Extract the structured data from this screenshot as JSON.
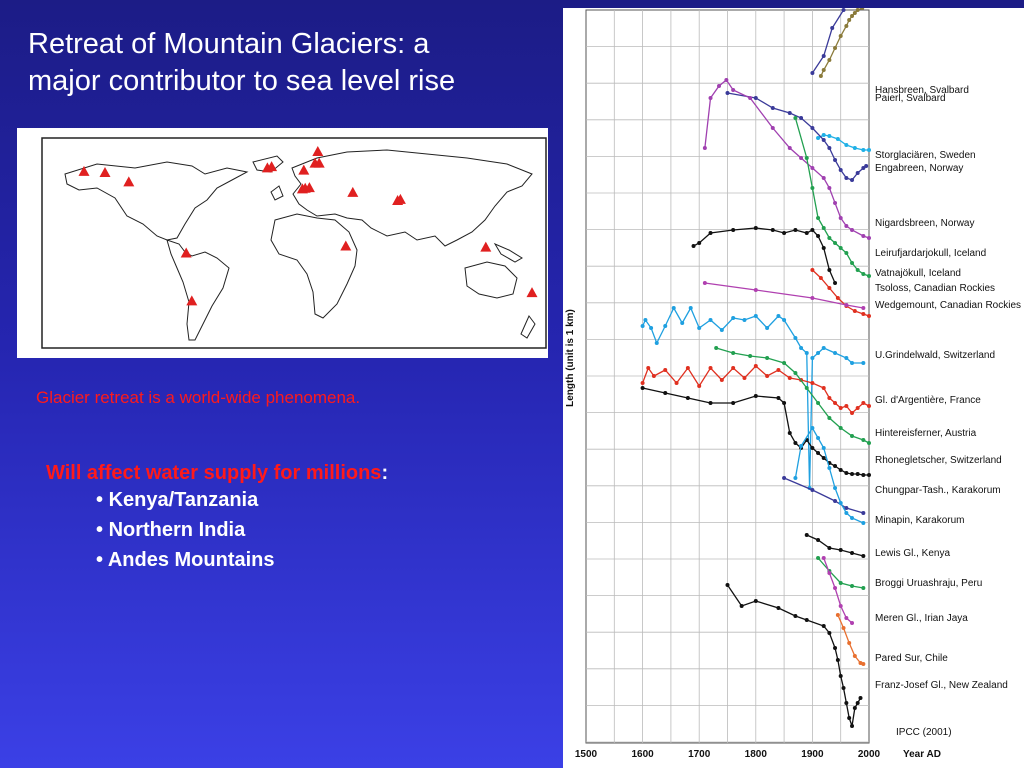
{
  "slide": {
    "title_lines": [
      "Retreat of Mountain Glaciers: a",
      "major contributor to sea level rise"
    ],
    "caption": "Glacier retreat is a world-wide phenomena.",
    "impact_heading_red": "Will affect water supply for millions",
    "impact_heading_colon": ":",
    "impacts": [
      "Kenya/Tanzania",
      "Northern India",
      "Andes Mountains"
    ]
  },
  "colors": {
    "marker": "#e02020",
    "heading_red": "#ff1a1a"
  },
  "map": {
    "markers": [
      {
        "lon": -135,
        "lat": 60
      },
      {
        "lon": -118,
        "lat": 52
      },
      {
        "lon": -150,
        "lat": 61
      },
      {
        "lon": -19,
        "lat": 64
      },
      {
        "lon": -16,
        "lat": 65
      },
      {
        "lon": 7,
        "lat": 62
      },
      {
        "lon": 17,
        "lat": 78
      },
      {
        "lon": 15,
        "lat": 68
      },
      {
        "lon": 18,
        "lat": 68
      },
      {
        "lon": 8,
        "lat": 46.5
      },
      {
        "lon": 11,
        "lat": 47
      },
      {
        "lon": 6,
        "lat": 46
      },
      {
        "lon": 42,
        "lat": 43
      },
      {
        "lon": 76,
        "lat": 37
      },
      {
        "lon": 74,
        "lat": 36
      },
      {
        "lon": 37,
        "lat": -3
      },
      {
        "lon": 137,
        "lat": -4
      },
      {
        "lon": -77,
        "lat": -9
      },
      {
        "lon": -73,
        "lat": -50
      },
      {
        "lon": 170,
        "lat": -43
      }
    ]
  },
  "chart_data": {
    "type": "line",
    "xlabel": "Year AD",
    "ylabel": "Length (unit is 1 km)",
    "xlim": [
      1500,
      2000
    ],
    "xticks": [
      1500,
      1600,
      1700,
      1800,
      1900,
      2000
    ],
    "grid": true,
    "credit": "IPCC (2001)",
    "series": [
      {
        "name": "Hansbreen, Svalbard",
        "color": "#8a7a3a",
        "ybase": 85,
        "points": [
          [
            1915,
            68
          ],
          [
            1920,
            62
          ],
          [
            1930,
            52
          ],
          [
            1940,
            40
          ],
          [
            1950,
            28
          ],
          [
            1960,
            18
          ],
          [
            1965,
            12
          ],
          [
            1970,
            8
          ],
          [
            1975,
            5
          ],
          [
            1980,
            2
          ],
          [
            1988,
            0
          ]
        ]
      },
      {
        "name": "Paierl, Svalbard",
        "color": "#3a3a99",
        "ybase": 93,
        "points": [
          [
            1900,
            65
          ],
          [
            1920,
            48
          ],
          [
            1935,
            20
          ],
          [
            1955,
            2
          ]
        ]
      },
      {
        "name": "Storglaciären, Sweden",
        "color": "#1fb0e6",
        "ybase": 150,
        "points": [
          [
            1910,
            130
          ],
          [
            1920,
            127
          ],
          [
            1930,
            128
          ],
          [
            1945,
            131
          ],
          [
            1960,
            137
          ],
          [
            1975,
            140
          ],
          [
            1990,
            142
          ],
          [
            2000,
            142
          ]
        ]
      },
      {
        "name": "Engabreen, Norway",
        "color": "#3a3a99",
        "ybase": 163,
        "points": [
          [
            1750,
            85
          ],
          [
            1800,
            90
          ],
          [
            1830,
            100
          ],
          [
            1860,
            105
          ],
          [
            1880,
            110
          ],
          [
            1900,
            120
          ],
          [
            1920,
            132
          ],
          [
            1930,
            140
          ],
          [
            1940,
            152
          ],
          [
            1950,
            162
          ],
          [
            1960,
            170
          ],
          [
            1970,
            172
          ],
          [
            1980,
            165
          ],
          [
            1990,
            160
          ],
          [
            1995,
            158
          ]
        ]
      },
      {
        "name": "Nigardsbreen, Norway",
        "color": "#a040b0",
        "ybase": 218,
        "points": [
          [
            1710,
            140
          ],
          [
            1720,
            90
          ],
          [
            1735,
            78
          ],
          [
            1748,
            72
          ],
          [
            1760,
            82
          ],
          [
            1790,
            90
          ],
          [
            1830,
            120
          ],
          [
            1860,
            140
          ],
          [
            1880,
            150
          ],
          [
            1900,
            160
          ],
          [
            1920,
            170
          ],
          [
            1930,
            180
          ],
          [
            1940,
            195
          ],
          [
            1950,
            210
          ],
          [
            1960,
            218
          ],
          [
            1970,
            222
          ],
          [
            1990,
            228
          ],
          [
            2000,
            230
          ]
        ]
      },
      {
        "name": "Leirufjardarjokull, Iceland",
        "color": "#111111",
        "ybase": 248,
        "points": [
          [
            1690,
            238
          ],
          [
            1700,
            235
          ],
          [
            1720,
            225
          ],
          [
            1760,
            222
          ],
          [
            1800,
            220
          ],
          [
            1830,
            222
          ],
          [
            1850,
            225
          ],
          [
            1870,
            222
          ],
          [
            1890,
            225
          ],
          [
            1900,
            222
          ],
          [
            1910,
            228
          ],
          [
            1920,
            240
          ],
          [
            1930,
            262
          ],
          [
            1940,
            275
          ]
        ]
      },
      {
        "name": "Vatnajökull, Iceland",
        "color": "#22a050",
        "ybase": 268,
        "points": [
          [
            1870,
            110
          ],
          [
            1890,
            150
          ],
          [
            1900,
            180
          ],
          [
            1910,
            210
          ],
          [
            1920,
            220
          ],
          [
            1930,
            230
          ],
          [
            1940,
            235
          ],
          [
            1950,
            240
          ],
          [
            1960,
            245
          ],
          [
            1970,
            255
          ],
          [
            1980,
            262
          ],
          [
            1990,
            266
          ],
          [
            2000,
            268
          ]
        ]
      },
      {
        "name": "Tsoloss, Canadian Rockies",
        "color": "#e03020",
        "ybase": 283,
        "points": [
          [
            1900,
            262
          ],
          [
            1915,
            270
          ],
          [
            1930,
            280
          ],
          [
            1945,
            290
          ],
          [
            1960,
            298
          ],
          [
            1975,
            303
          ],
          [
            1990,
            306
          ],
          [
            2000,
            308
          ]
        ]
      },
      {
        "name": "Wedgemount, Canadian Rockies",
        "color": "#b040b0",
        "ybase": 300,
        "points": [
          [
            1710,
            275
          ],
          [
            1800,
            282
          ],
          [
            1900,
            290
          ],
          [
            1960,
            297
          ],
          [
            1990,
            300
          ]
        ]
      },
      {
        "name": "U.Grindelwald, Switzerland",
        "color": "#1fa0e0",
        "ybase": 350,
        "points": [
          [
            1600,
            318
          ],
          [
            1605,
            312
          ],
          [
            1615,
            320
          ],
          [
            1625,
            335
          ],
          [
            1640,
            318
          ],
          [
            1655,
            300
          ],
          [
            1670,
            315
          ],
          [
            1685,
            300
          ],
          [
            1700,
            320
          ],
          [
            1720,
            312
          ],
          [
            1740,
            322
          ],
          [
            1760,
            310
          ],
          [
            1780,
            312
          ],
          [
            1800,
            308
          ],
          [
            1820,
            320
          ],
          [
            1840,
            308
          ],
          [
            1850,
            312
          ],
          [
            1870,
            330
          ],
          [
            1880,
            340
          ],
          [
            1890,
            345
          ],
          [
            1895,
            480
          ],
          [
            1900,
            350
          ],
          [
            1910,
            345
          ],
          [
            1920,
            340
          ],
          [
            1940,
            345
          ],
          [
            1960,
            350
          ],
          [
            1970,
            355
          ],
          [
            1990,
            355
          ]
        ]
      },
      {
        "name": "Gl. d'Argentière, France",
        "color": "#e03020",
        "ybase": 395,
        "points": [
          [
            1600,
            375
          ],
          [
            1610,
            360
          ],
          [
            1620,
            368
          ],
          [
            1640,
            362
          ],
          [
            1660,
            375
          ],
          [
            1680,
            360
          ],
          [
            1700,
            378
          ],
          [
            1720,
            360
          ],
          [
            1740,
            372
          ],
          [
            1760,
            360
          ],
          [
            1780,
            370
          ],
          [
            1800,
            358
          ],
          [
            1820,
            368
          ],
          [
            1840,
            362
          ],
          [
            1860,
            370
          ],
          [
            1880,
            372
          ],
          [
            1900,
            375
          ],
          [
            1920,
            380
          ],
          [
            1930,
            390
          ],
          [
            1940,
            395
          ],
          [
            1950,
            400
          ],
          [
            1960,
            398
          ],
          [
            1970,
            405
          ],
          [
            1980,
            400
          ],
          [
            1990,
            395
          ],
          [
            2000,
            398
          ]
        ]
      },
      {
        "name": "Hintereisferner, Austria",
        "color": "#22a050",
        "ybase": 428,
        "points": [
          [
            1730,
            340
          ],
          [
            1760,
            345
          ],
          [
            1790,
            348
          ],
          [
            1820,
            350
          ],
          [
            1850,
            355
          ],
          [
            1870,
            365
          ],
          [
            1890,
            380
          ],
          [
            1910,
            395
          ],
          [
            1930,
            410
          ],
          [
            1950,
            420
          ],
          [
            1970,
            428
          ],
          [
            1990,
            432
          ],
          [
            2000,
            435
          ]
        ]
      },
      {
        "name": "Rhonegletscher, Switzerland",
        "color": "#111111",
        "ybase": 455,
        "points": [
          [
            1600,
            380
          ],
          [
            1640,
            385
          ],
          [
            1680,
            390
          ],
          [
            1720,
            395
          ],
          [
            1760,
            395
          ],
          [
            1800,
            388
          ],
          [
            1840,
            390
          ],
          [
            1850,
            395
          ],
          [
            1860,
            425
          ],
          [
            1870,
            435
          ],
          [
            1880,
            440
          ],
          [
            1890,
            432
          ],
          [
            1900,
            440
          ],
          [
            1910,
            445
          ],
          [
            1920,
            450
          ],
          [
            1930,
            455
          ],
          [
            1940,
            458
          ],
          [
            1950,
            462
          ],
          [
            1960,
            465
          ],
          [
            1970,
            466
          ],
          [
            1980,
            466
          ],
          [
            1990,
            467
          ],
          [
            2000,
            467
          ]
        ]
      },
      {
        "name": "Chungpar-Tash., Karakorum",
        "color": "#3a3a99",
        "ybase": 485,
        "points": [
          [
            1850,
            470
          ],
          [
            1900,
            482
          ],
          [
            1940,
            493
          ],
          [
            1960,
            500
          ],
          [
            1990,
            505
          ]
        ]
      },
      {
        "name": "Minapin, Karakorum",
        "color": "#1fa0e0",
        "ybase": 515,
        "points": [
          [
            1870,
            470
          ],
          [
            1880,
            438
          ],
          [
            1900,
            420
          ],
          [
            1910,
            430
          ],
          [
            1920,
            440
          ],
          [
            1930,
            460
          ],
          [
            1940,
            480
          ],
          [
            1950,
            495
          ],
          [
            1960,
            505
          ],
          [
            1970,
            510
          ],
          [
            1990,
            515
          ]
        ]
      },
      {
        "name": "Lewis Gl., Kenya",
        "color": "#111111",
        "ybase": 548,
        "points": [
          [
            1890,
            527
          ],
          [
            1910,
            532
          ],
          [
            1930,
            540
          ],
          [
            1950,
            542
          ],
          [
            1970,
            545
          ],
          [
            1990,
            548
          ]
        ]
      },
      {
        "name": "Broggi Uruashraju, Peru",
        "color": "#22a050",
        "ybase": 578,
        "points": [
          [
            1910,
            550
          ],
          [
            1930,
            563
          ],
          [
            1950,
            575
          ],
          [
            1970,
            578
          ],
          [
            1990,
            580
          ]
        ]
      },
      {
        "name": "Meren Gl., Irian Jaya",
        "color": "#b040b0",
        "ybase": 613,
        "points": [
          [
            1920,
            550
          ],
          [
            1930,
            565
          ],
          [
            1940,
            580
          ],
          [
            1950,
            598
          ],
          [
            1960,
            610
          ],
          [
            1970,
            615
          ]
        ]
      },
      {
        "name": "Pared Sur, Chile",
        "color": "#e87030",
        "ybase": 653,
        "points": [
          [
            1945,
            607
          ],
          [
            1955,
            620
          ],
          [
            1965,
            635
          ],
          [
            1975,
            648
          ],
          [
            1985,
            655
          ],
          [
            1990,
            656
          ]
        ]
      },
      {
        "name": "Franz-Josef Gl., New Zealand",
        "color": "#111111",
        "ybase": 680,
        "points": [
          [
            1750,
            577
          ],
          [
            1775,
            598
          ],
          [
            1800,
            593
          ],
          [
            1840,
            600
          ],
          [
            1870,
            608
          ],
          [
            1890,
            612
          ],
          [
            1920,
            618
          ],
          [
            1930,
            625
          ],
          [
            1940,
            640
          ],
          [
            1945,
            652
          ],
          [
            1950,
            668
          ],
          [
            1955,
            680
          ],
          [
            1960,
            695
          ],
          [
            1965,
            710
          ],
          [
            1970,
            718
          ],
          [
            1975,
            700
          ],
          [
            1980,
            695
          ],
          [
            1985,
            690
          ]
        ]
      }
    ]
  }
}
